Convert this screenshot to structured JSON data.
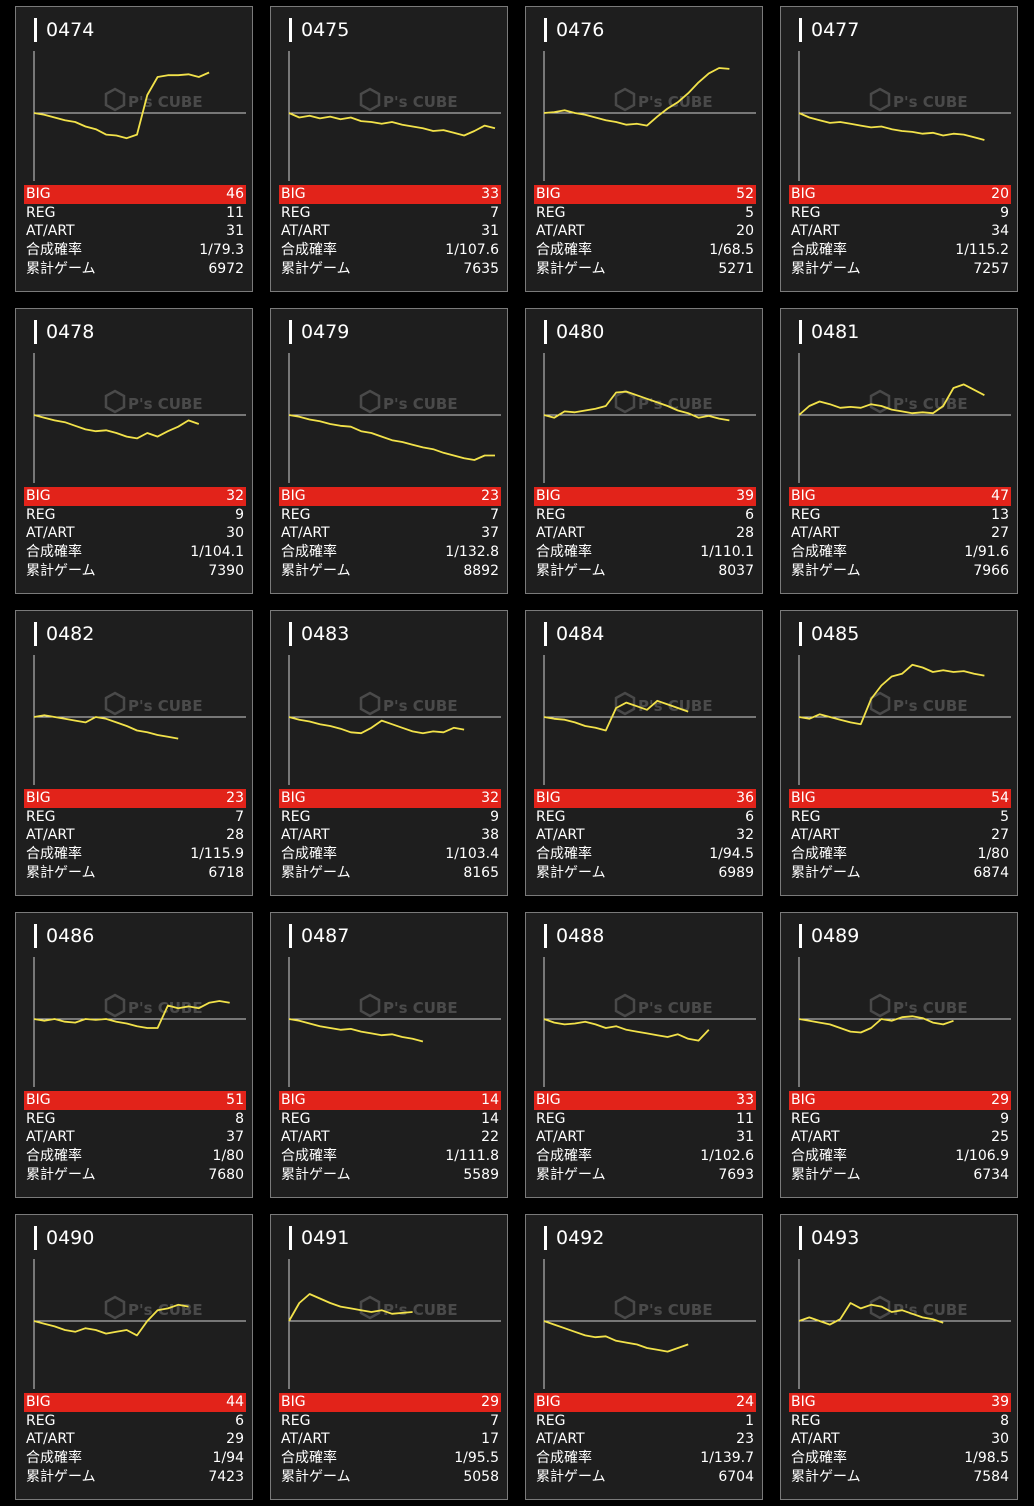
{
  "theme": {
    "accent_red": "#e2231a",
    "graph_line": "#f2e24a",
    "card_bg": "#1e1e1e",
    "page_bg": "#000000"
  },
  "watermark": {
    "brand": "P's CUBE",
    "icon": "cube-logo-icon"
  },
  "labels": {
    "big": "BIG",
    "reg": "REG",
    "at": "AT/ART",
    "prob": "合成確率",
    "games": "累計ゲーム"
  },
  "machines": [
    {
      "id": "0474",
      "big": "46",
      "reg": "11",
      "at": "31",
      "prob": "1/79.3",
      "games": "6972",
      "graph": [
        0,
        -2,
        -5,
        -8,
        -10,
        -15,
        -18,
        -24,
        -25,
        -28,
        -24,
        20,
        40,
        42,
        42,
        43,
        40,
        45
      ]
    },
    {
      "id": "0475",
      "big": "33",
      "reg": "7",
      "at": "31",
      "prob": "1/107.6",
      "games": "7635",
      "graph": [
        0,
        -5,
        -3,
        -6,
        -4,
        -7,
        -5,
        -9,
        -10,
        -12,
        -10,
        -13,
        -15,
        -17,
        -20,
        -19,
        -22,
        -25,
        -20,
        -14,
        -17
      ]
    },
    {
      "id": "0476",
      "big": "52",
      "reg": "5",
      "at": "20",
      "prob": "1/68.5",
      "games": "5271",
      "graph": [
        0,
        1,
        3,
        0,
        -2,
        -5,
        -8,
        -10,
        -13,
        -12,
        -14,
        -4,
        5,
        12,
        22,
        34,
        44,
        50,
        49
      ]
    },
    {
      "id": "0477",
      "big": "20",
      "reg": "9",
      "at": "34",
      "prob": "1/115.2",
      "games": "7257",
      "graph": [
        0,
        -5,
        -8,
        -11,
        -10,
        -12,
        -14,
        -16,
        -15,
        -18,
        -20,
        -21,
        -23,
        -22,
        -25,
        -23,
        -24,
        -27,
        -30
      ]
    },
    {
      "id": "0478",
      "big": "32",
      "reg": "9",
      "at": "30",
      "prob": "1/104.1",
      "games": "7390",
      "graph": [
        0,
        -3,
        -6,
        -8,
        -12,
        -16,
        -18,
        -17,
        -20,
        -24,
        -26,
        -20,
        -24,
        -18,
        -13,
        -6,
        -10
      ]
    },
    {
      "id": "0479",
      "big": "23",
      "reg": "7",
      "at": "37",
      "prob": "1/132.8",
      "games": "8892",
      "graph": [
        0,
        -2,
        -5,
        -7,
        -10,
        -12,
        -13,
        -18,
        -20,
        -24,
        -28,
        -30,
        -33,
        -36,
        -38,
        -42,
        -45,
        -48,
        -50,
        -45,
        -45
      ]
    },
    {
      "id": "0480",
      "big": "39",
      "reg": "6",
      "at": "28",
      "prob": "1/110.1",
      "games": "8037",
      "graph": [
        0,
        -3,
        4,
        3,
        5,
        7,
        10,
        25,
        26,
        22,
        18,
        14,
        10,
        5,
        2,
        -3,
        -1,
        -4,
        -6
      ]
    },
    {
      "id": "0481",
      "big": "47",
      "reg": "13",
      "at": "27",
      "prob": "1/91.6",
      "games": "7966",
      "graph": [
        0,
        10,
        15,
        12,
        8,
        9,
        8,
        12,
        10,
        6,
        4,
        2,
        3,
        2,
        10,
        30,
        34,
        28,
        22
      ]
    },
    {
      "id": "0482",
      "big": "23",
      "reg": "7",
      "at": "28",
      "prob": "1/115.9",
      "games": "6718",
      "graph": [
        0,
        2,
        0,
        -2,
        -4,
        -6,
        0,
        -2,
        -6,
        -10,
        -15,
        -17,
        -20,
        -22,
        -24
      ]
    },
    {
      "id": "0483",
      "big": "32",
      "reg": "9",
      "at": "38",
      "prob": "1/103.4",
      "games": "8165",
      "graph": [
        0,
        -3,
        -5,
        -8,
        -10,
        -13,
        -17,
        -18,
        -12,
        -4,
        -8,
        -12,
        -16,
        -18,
        -16,
        -17,
        -12,
        -14
      ]
    },
    {
      "id": "0484",
      "big": "36",
      "reg": "6",
      "at": "32",
      "prob": "1/94.5",
      "games": "6989",
      "graph": [
        0,
        -2,
        -3,
        -6,
        -10,
        -12,
        -15,
        10,
        16,
        12,
        8,
        18,
        14,
        10,
        6
      ]
    },
    {
      "id": "0485",
      "big": "54",
      "reg": "5",
      "at": "27",
      "prob": "1/80",
      "games": "6874",
      "graph": [
        0,
        -2,
        3,
        0,
        -3,
        -6,
        -8,
        20,
        35,
        45,
        48,
        58,
        55,
        50,
        52,
        50,
        51,
        48,
        46
      ]
    },
    {
      "id": "0486",
      "big": "51",
      "reg": "8",
      "at": "37",
      "prob": "1/80",
      "games": "7680",
      "graph": [
        0,
        -2,
        0,
        -3,
        -4,
        0,
        -1,
        0,
        -3,
        -5,
        -8,
        -10,
        -10,
        15,
        12,
        14,
        12,
        18,
        20,
        18
      ]
    },
    {
      "id": "0487",
      "big": "14",
      "reg": "14",
      "at": "22",
      "prob": "1/111.8",
      "games": "5589",
      "graph": [
        0,
        -2,
        -5,
        -8,
        -10,
        -12,
        -11,
        -14,
        -16,
        -18,
        -17,
        -20,
        -22,
        -25
      ]
    },
    {
      "id": "0488",
      "big": "33",
      "reg": "11",
      "at": "31",
      "prob": "1/102.6",
      "games": "7693",
      "graph": [
        0,
        -4,
        -6,
        -5,
        -3,
        -6,
        -10,
        -8,
        -12,
        -14,
        -16,
        -18,
        -20,
        -17,
        -22,
        -24,
        -12
      ]
    },
    {
      "id": "0489",
      "big": "29",
      "reg": "9",
      "at": "25",
      "prob": "1/106.9",
      "games": "6734",
      "graph": [
        0,
        -2,
        -4,
        -6,
        -10,
        -14,
        -15,
        -10,
        0,
        -2,
        2,
        3,
        1,
        -4,
        -6,
        -2
      ]
    },
    {
      "id": "0490",
      "big": "44",
      "reg": "6",
      "at": "29",
      "prob": "1/94",
      "games": "7423",
      "graph": [
        0,
        -3,
        -6,
        -10,
        -12,
        -8,
        -10,
        -14,
        -12,
        -10,
        -16,
        0,
        12,
        14,
        18,
        16
      ]
    },
    {
      "id": "0491",
      "big": "29",
      "reg": "7",
      "at": "17",
      "prob": "1/95.5",
      "games": "5058",
      "graph": [
        0,
        20,
        30,
        25,
        20,
        16,
        14,
        12,
        10,
        12,
        8,
        9,
        10
      ]
    },
    {
      "id": "0492",
      "big": "24",
      "reg": "1",
      "at": "23",
      "prob": "1/139.7",
      "games": "6704",
      "graph": [
        0,
        -4,
        -8,
        -12,
        -16,
        -18,
        -17,
        -22,
        -24,
        -26,
        -30,
        -32,
        -34,
        -30,
        -26
      ]
    },
    {
      "id": "0493",
      "big": "39",
      "reg": "8",
      "at": "30",
      "prob": "1/98.5",
      "games": "7584",
      "graph": [
        0,
        4,
        0,
        -4,
        2,
        20,
        14,
        18,
        16,
        10,
        12,
        8,
        4,
        2,
        -2
      ]
    }
  ]
}
